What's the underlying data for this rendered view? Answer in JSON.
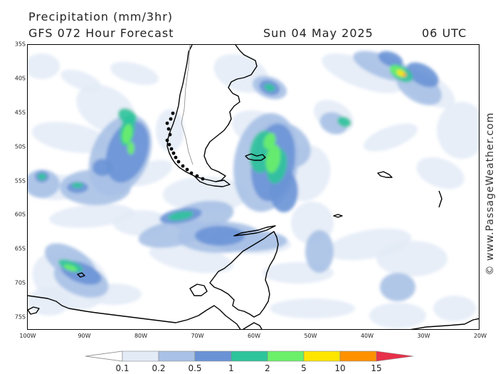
{
  "header": {
    "title": "Precipitation (mm/3hr)",
    "forecast": "GFS 072 Hour Forecast",
    "date": "Sun 04 May 2025",
    "time": "06 UTC"
  },
  "latitude_labels": [
    "35S",
    "40S",
    "45S",
    "50S",
    "55S",
    "60S",
    "65S",
    "70S",
    "75S"
  ],
  "longitude_labels": [
    "100W",
    "90W",
    "80W",
    "70W",
    "60W",
    "50W",
    "40W",
    "30W",
    "20W"
  ],
  "watermark": "© www.PassageWeather.com",
  "legend": {
    "labels": [
      "0.1",
      "0.2",
      "0.5",
      "1",
      "2",
      "5",
      "10",
      "15"
    ],
    "colors": [
      "#ffffff",
      "#e3ebf7",
      "#a9c1e5",
      "#6a93d6",
      "#2ec49b",
      "#6cf06a",
      "#ffe600",
      "#ff9100",
      "#e8304a"
    ]
  },
  "map": {
    "extent": {
      "lon_min": -100,
      "lon_max": -20,
      "lat_min": -77,
      "lat_max": -35
    },
    "precip_levels_mm": [
      0.1,
      0.2,
      0.5,
      1,
      2,
      5,
      10,
      15
    ]
  }
}
